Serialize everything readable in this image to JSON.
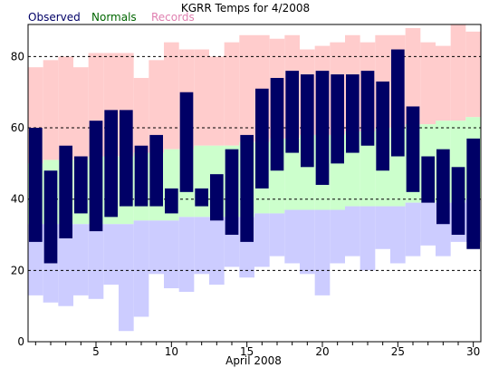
{
  "title": "KGRR Temps for 4/2008",
  "legend": [
    {
      "label": "Observed",
      "color": "#000066"
    },
    {
      "label": "Normals",
      "color": "#006600"
    },
    {
      "label": "Records",
      "color": "#e080b0"
    }
  ],
  "chart_data": {
    "type": "bar",
    "title": "KGRR Temps for 4/2008",
    "xlabel": "April 2008",
    "ylabel": "",
    "xlim": [
      0.5,
      30.5
    ],
    "ylim": [
      0,
      89
    ],
    "x_ticks": [
      5,
      10,
      15,
      20,
      25,
      30
    ],
    "y_ticks": [
      0,
      20,
      40,
      60,
      80
    ],
    "grid": "horizontal dashed lines at 20, 40, 60, 80",
    "legend_position": "top-left, above the plot",
    "colors": {
      "observed": "#000066",
      "normal_band": "#ccffcc",
      "record_high_band": "#ffcccc",
      "record_low_band": "#ccccff"
    },
    "days": [
      1,
      2,
      3,
      4,
      5,
      6,
      7,
      8,
      9,
      10,
      11,
      12,
      13,
      14,
      15,
      16,
      17,
      18,
      19,
      20,
      21,
      22,
      23,
      24,
      25,
      26,
      27,
      28,
      29,
      30
    ],
    "series": [
      {
        "name": "Observed",
        "low": [
          28,
          22,
          29,
          36,
          31,
          35,
          38,
          38,
          38,
          36,
          42,
          38,
          34,
          30,
          28,
          43,
          48,
          53,
          49,
          44,
          50,
          53,
          55,
          48,
          52,
          42,
          39,
          33,
          30,
          26
        ],
        "high": [
          60,
          48,
          55,
          52,
          62,
          65,
          65,
          55,
          58,
          43,
          70,
          43,
          47,
          54,
          58,
          71,
          74,
          76,
          75,
          76,
          75,
          75,
          76,
          73,
          82,
          66,
          52,
          54,
          49,
          57
        ]
      },
      {
        "name": "Normals",
        "low": [
          33,
          33,
          33,
          33,
          33,
          33,
          33,
          34,
          34,
          34,
          35,
          35,
          35,
          35,
          35,
          36,
          36,
          37,
          37,
          37,
          37,
          38,
          38,
          38,
          38,
          39,
          39,
          39,
          39,
          40
        ],
        "high": [
          50,
          51,
          51,
          51,
          52,
          52,
          52,
          53,
          53,
          54,
          54,
          55,
          55,
          55,
          56,
          56,
          57,
          57,
          58,
          58,
          58,
          59,
          59,
          60,
          60,
          61,
          61,
          62,
          62,
          63
        ]
      },
      {
        "name": "Records",
        "low": [
          13,
          11,
          10,
          13,
          12,
          16,
          3,
          7,
          19,
          15,
          14,
          19,
          16,
          21,
          18,
          21,
          24,
          22,
          19,
          13,
          22,
          24,
          20,
          26,
          22,
          24,
          27,
          24,
          28,
          28
        ],
        "high": [
          77,
          79,
          80,
          77,
          81,
          81,
          81,
          74,
          79,
          84,
          82,
          82,
          80,
          84,
          86,
          86,
          85,
          86,
          82,
          83,
          84,
          86,
          84,
          86,
          86,
          88,
          84,
          83,
          89,
          87
        ]
      }
    ]
  }
}
